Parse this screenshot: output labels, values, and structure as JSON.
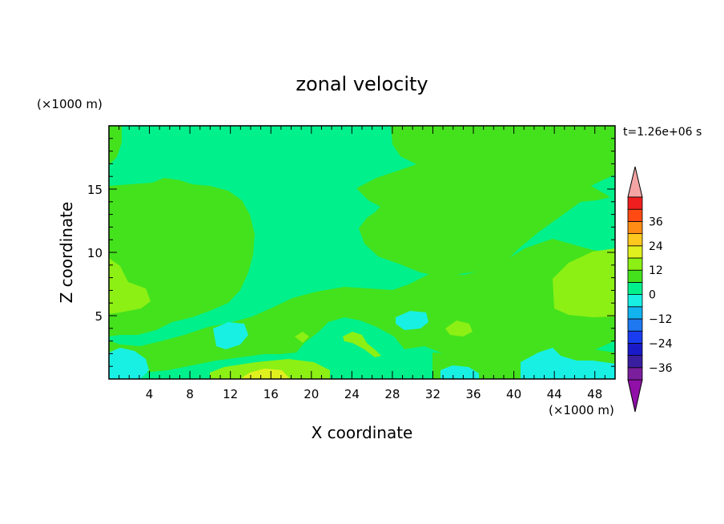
{
  "chart_data": {
    "type": "heatmap",
    "title": "zonal velocity",
    "xlabel": "X coordinate",
    "ylabel": "Z coordinate",
    "x_unit_label": "(×1000 m)",
    "y_unit_label": "(×1000 m)",
    "time_label": "t=1.26e+06 s",
    "xlim": [
      0,
      50
    ],
    "ylim": [
      0,
      20
    ],
    "x_ticks": [
      4,
      8,
      12,
      16,
      20,
      24,
      28,
      32,
      36,
      40,
      44,
      48
    ],
    "y_ticks": [
      5,
      10,
      15
    ],
    "colorbar": {
      "levels": [
        -42,
        -36,
        -30,
        -24,
        -18,
        -12,
        -6,
        0,
        6,
        12,
        18,
        24,
        30,
        36,
        42
      ],
      "labels": [
        36,
        24,
        12,
        0,
        -12,
        -24,
        -36
      ],
      "colors": [
        "#7a1e9c",
        "#3a1ea0",
        "#1a1ac8",
        "#1a3cf0",
        "#1e78f0",
        "#12b4f0",
        "#18f0e4",
        "#00f08c",
        "#44e21c",
        "#8cf014",
        "#e0f01e",
        "#ffc81e",
        "#ff8c14",
        "#ff4a14",
        "#f01e1e"
      ],
      "under_color": "#9010a8",
      "over_color": "#f4a4a4"
    },
    "regions": [
      {
        "level": "0 to 6",
        "color": "#00f08c",
        "description": "background field"
      },
      {
        "level": "6 to 12",
        "color": "#44e21c",
        "description": "left mid region"
      },
      {
        "level": "6 to 12",
        "color": "#44e21c",
        "description": "upper right region"
      },
      {
        "level": "6 to 12",
        "color": "#44e21c",
        "description": "lower middle region"
      },
      {
        "level": "12 to 18",
        "color": "#8cf014",
        "description": "left edge patch"
      },
      {
        "level": "12 to 18",
        "color": "#8cf014",
        "description": "right edge patch"
      },
      {
        "level": "12 to 18",
        "color": "#8cf014",
        "description": "bottom patch near x=16"
      },
      {
        "level": "18 to 24",
        "color": "#e0f01e",
        "description": "bottom core near x=16"
      },
      {
        "level": "-6 to 0",
        "color": "#18f0e4",
        "description": "bottom left patch"
      },
      {
        "level": "-6 to 0",
        "color": "#18f0e4",
        "description": "bottom right patch"
      },
      {
        "level": "-6 to 0",
        "color": "#18f0e4",
        "description": "patch near x=12"
      },
      {
        "level": "-6 to 0",
        "color": "#18f0e4",
        "description": "patch near x=29"
      }
    ]
  }
}
